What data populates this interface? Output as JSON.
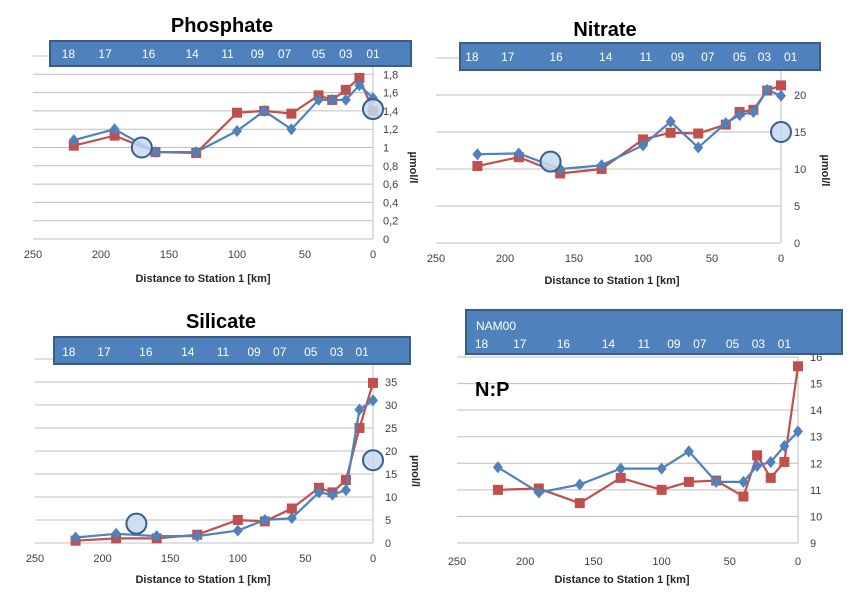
{
  "chart_data": [
    {
      "type": "line",
      "title": "Phosphate",
      "xlabel": "Distance to Station 1 [km]",
      "ylabel": "µmol/l",
      "xlim": [
        250,
        0
      ],
      "ylim": [
        0,
        2.0
      ],
      "x_ticks": [
        "250",
        "200",
        "150",
        "100",
        "50",
        "0"
      ],
      "y_ticks": [
        "0",
        "0,2",
        "0,4",
        "0,6",
        "0,8",
        "1",
        "1,2",
        "1,4",
        "1,6",
        "1,8"
      ],
      "grid": true,
      "stations": [
        "18",
        "17",
        "16",
        "14",
        "11",
        "09",
        "07",
        "05",
        "03",
        "01"
      ],
      "x": [
        220,
        190,
        160,
        130,
        100,
        80,
        60,
        40,
        30,
        20,
        10,
        0
      ],
      "series": [
        {
          "color": "#C0504D",
          "marker": "square",
          "values": [
            1.02,
            1.13,
            0.95,
            0.94,
            1.38,
            1.4,
            1.37,
            1.57,
            1.52,
            1.63,
            1.76,
            1.4
          ]
        },
        {
          "color": "#4F81BD",
          "marker": "diamond",
          "values": [
            1.08,
            1.2,
            0.95,
            0.95,
            1.18,
            1.4,
            1.2,
            1.52,
            1.52,
            1.52,
            1.68,
            1.54
          ]
        }
      ],
      "highlights": [
        {
          "x": 170,
          "y": 1.0
        },
        {
          "x": 0,
          "y": 1.42
        }
      ]
    },
    {
      "type": "line",
      "title": "Nitrate",
      "xlabel": "Distance to Station 1 [km]",
      "ylabel": "µmol/l",
      "xlim": [
        250,
        0
      ],
      "ylim": [
        0,
        25
      ],
      "x_ticks": [
        "250",
        "200",
        "150",
        "100",
        "50",
        "0"
      ],
      "y_ticks": [
        "0",
        "5",
        "10",
        "15",
        "20"
      ],
      "grid": true,
      "stations": [
        "18",
        "17",
        "16",
        "14",
        "11",
        "09",
        "07",
        "05",
        "03",
        "01"
      ],
      "x": [
        220,
        190,
        160,
        130,
        100,
        80,
        60,
        40,
        30,
        20,
        10,
        0
      ],
      "series": [
        {
          "color": "#C0504D",
          "marker": "square",
          "values": [
            10.4,
            11.6,
            9.4,
            10.0,
            14.0,
            14.9,
            14.8,
            16.0,
            17.7,
            18.0,
            20.6,
            21.3
          ]
        },
        {
          "color": "#4F81BD",
          "marker": "diamond",
          "values": [
            12.0,
            12.1,
            10.0,
            10.5,
            13.2,
            16.4,
            12.9,
            16.2,
            17.3,
            17.7,
            20.7,
            19.9
          ]
        }
      ],
      "highlights": [
        {
          "x": 167,
          "y": 11.0
        },
        {
          "x": 0,
          "y": 15.0
        }
      ]
    },
    {
      "type": "line",
      "title": "Silicate",
      "xlabel": "Distance to Station 1 [km]",
      "ylabel": "µmol/l",
      "xlim": [
        250,
        0
      ],
      "ylim": [
        0,
        40
      ],
      "x_ticks": [
        "250",
        "200",
        "150",
        "100",
        "50",
        "0"
      ],
      "y_ticks": [
        "0",
        "5",
        "10",
        "15",
        "20",
        "25",
        "30",
        "35"
      ],
      "grid": true,
      "stations": [
        "18",
        "17",
        "16",
        "14",
        "11",
        "09",
        "07",
        "05",
        "03",
        "01"
      ],
      "x": [
        220,
        190,
        160,
        130,
        100,
        80,
        60,
        40,
        30,
        20,
        10,
        0
      ],
      "series": [
        {
          "color": "#C0504D",
          "marker": "square",
          "values": [
            0.5,
            1.0,
            1.0,
            1.8,
            5.0,
            4.7,
            7.5,
            12.0,
            11.0,
            13.7,
            25.0,
            34.8
          ]
        },
        {
          "color": "#4F81BD",
          "marker": "diamond",
          "values": [
            1.2,
            2.0,
            1.5,
            1.5,
            2.7,
            5.0,
            5.4,
            11.0,
            10.5,
            11.5,
            29.0,
            31.0
          ]
        }
      ],
      "highlights": [
        {
          "x": 175,
          "y": 4.2
        },
        {
          "x": 0,
          "y": 18.0
        }
      ]
    },
    {
      "type": "line",
      "title": "N:P",
      "banner_label": "NAM00",
      "xlabel": "Distance to Station 1 [km]",
      "ylabel": "",
      "xlim": [
        250,
        0
      ],
      "ylim": [
        9,
        16
      ],
      "x_ticks": [
        "250",
        "200",
        "150",
        "100",
        "50",
        "0"
      ],
      "y_ticks": [
        "9",
        "10",
        "11",
        "12",
        "13",
        "14",
        "15",
        "16"
      ],
      "grid": true,
      "stations": [
        "18",
        "17",
        "16",
        "14",
        "11",
        "09",
        "07",
        "05",
        "03",
        "01"
      ],
      "x": [
        220,
        190,
        160,
        130,
        100,
        80,
        60,
        40,
        30,
        20,
        10,
        0
      ],
      "series": [
        {
          "color": "#C0504D",
          "marker": "square",
          "values": [
            11.0,
            11.05,
            10.5,
            11.45,
            11.0,
            11.3,
            11.35,
            10.75,
            12.3,
            11.45,
            12.05,
            15.65
          ]
        },
        {
          "color": "#4F81BD",
          "marker": "diamond",
          "values": [
            11.85,
            10.9,
            11.2,
            11.8,
            11.8,
            12.45,
            11.3,
            11.3,
            11.9,
            12.05,
            12.65,
            13.2
          ]
        }
      ],
      "highlights": []
    }
  ],
  "colors": {
    "banner": "#4F81BD",
    "banner_border": "#385D8A",
    "highlight_fill": "#C6D9F1",
    "highlight_stroke": "#385D8A",
    "grid": "#BFBFBF"
  }
}
